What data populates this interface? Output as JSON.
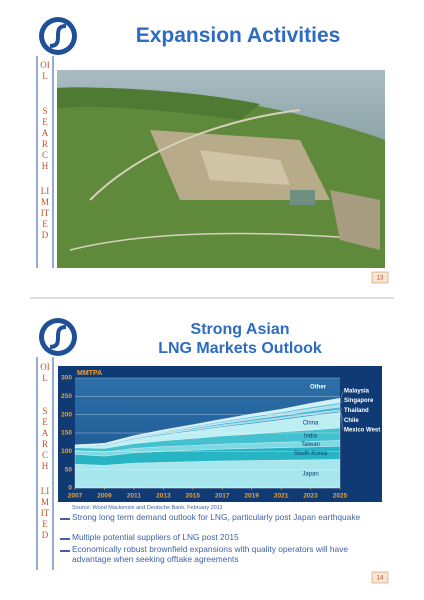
{
  "slides": [
    {
      "title": "Expansion Activities",
      "sidebar": [
        "OIL",
        "SEARCH",
        "LIMITED"
      ],
      "page": "13"
    },
    {
      "title_lines": [
        "Strong Asian",
        "LNG Markets Outlook"
      ],
      "sidebar": [
        "OIL",
        "SEARCH",
        "LIMITED"
      ],
      "source": "Source: Wood Mackenzie and Deutsche Bank, February 2011",
      "bullets": [
        "Strong long term demand outlook for LNG, particularly post Japan earthquake",
        "Multiple potential suppliers of LNG post 2015",
        "Economically robust brownfield expansions with quality operators will have advantage when seeking offtake agreements"
      ],
      "page": "14"
    }
  ],
  "chart_data": {
    "type": "area",
    "stacked": true,
    "y_label": "MMTPA",
    "x": [
      2007,
      2009,
      2011,
      2013,
      2015,
      2017,
      2019,
      2021,
      2023,
      2025
    ],
    "xlim": [
      2007,
      2025
    ],
    "xticks": [
      2007,
      2009,
      2011,
      2013,
      2015,
      2017,
      2019,
      2021,
      2023,
      2025
    ],
    "ylim": [
      0,
      300
    ],
    "yticks": [
      0,
      50,
      100,
      150,
      200,
      250,
      300
    ],
    "grid": true,
    "series": [
      {
        "name": "Japan",
        "color": "#a6e6ec",
        "values": [
          65,
          62,
          68,
          70,
          72,
          74,
          75,
          76,
          77,
          78
        ]
      },
      {
        "name": "South Korea",
        "color": "#27b5c3",
        "values": [
          27,
          25,
          28,
          30,
          31,
          32,
          33,
          34,
          35,
          36
        ]
      },
      {
        "name": "Taiwan",
        "color": "#7fd9e2",
        "values": [
          10,
          11,
          12,
          13,
          13,
          14,
          14,
          15,
          15,
          16
        ]
      },
      {
        "name": "India",
        "color": "#44c1ce",
        "values": [
          8,
          10,
          13,
          16,
          19,
          22,
          25,
          28,
          31,
          34
        ]
      },
      {
        "name": "China",
        "color": "#bdeef2",
        "values": [
          4,
          8,
          12,
          16,
          20,
          24,
          28,
          32,
          38,
          42
        ]
      },
      {
        "name": "Mexico West",
        "color": "#3aa9c8",
        "values": [
          1,
          2,
          2,
          3,
          3,
          3,
          4,
          4,
          4,
          4
        ]
      },
      {
        "name": "Chile",
        "color": "#8fd0e8",
        "values": [
          0,
          1,
          2,
          2,
          2,
          3,
          3,
          3,
          3,
          3
        ]
      },
      {
        "name": "Thailand",
        "color": "#4cb8d8",
        "values": [
          0,
          0,
          1,
          2,
          3,
          4,
          5,
          6,
          7,
          8
        ]
      },
      {
        "name": "Singapore",
        "color": "#a8e0ee",
        "values": [
          0,
          0,
          0,
          1,
          2,
          3,
          4,
          5,
          6,
          7
        ]
      },
      {
        "name": "Malaysia",
        "color": "#5fc3dc",
        "values": [
          1,
          1,
          2,
          2,
          3,
          3,
          4,
          4,
          5,
          5
        ]
      },
      {
        "name": "Other",
        "color": "#d2f1f6",
        "values": [
          2,
          2,
          3,
          4,
          5,
          6,
          7,
          8,
          10,
          12
        ]
      }
    ]
  }
}
